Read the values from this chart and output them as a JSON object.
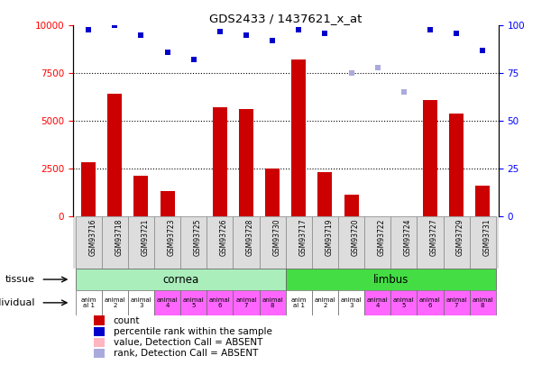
{
  "title": "GDS2433 / 1437621_x_at",
  "samples": [
    "GSM93716",
    "GSM93718",
    "GSM93721",
    "GSM93723",
    "GSM93725",
    "GSM93726",
    "GSM93728",
    "GSM93730",
    "GSM93717",
    "GSM93719",
    "GSM93720",
    "GSM93722",
    "GSM93724",
    "GSM93727",
    "GSM93729",
    "GSM93731"
  ],
  "count_values": [
    2800,
    6400,
    2100,
    1300,
    0,
    5700,
    5600,
    2500,
    8200,
    2300,
    1100,
    0,
    0,
    6100,
    5400,
    1600
  ],
  "count_absent": [
    false,
    false,
    false,
    false,
    true,
    false,
    false,
    false,
    false,
    false,
    false,
    true,
    true,
    false,
    false,
    false
  ],
  "rank_values": [
    98,
    100,
    95,
    86,
    82,
    97,
    95,
    92,
    98,
    96,
    75,
    78,
    65,
    98,
    96,
    87
  ],
  "rank_absent": [
    false,
    false,
    false,
    false,
    false,
    false,
    false,
    false,
    false,
    false,
    true,
    true,
    true,
    false,
    false,
    false
  ],
  "tissue_groups": [
    {
      "label": "cornea",
      "start": 0,
      "end": 8,
      "color": "#AAEEBB"
    },
    {
      "label": "limbus",
      "start": 8,
      "end": 16,
      "color": "#44DD44"
    }
  ],
  "individual_labels": [
    "anim\nal 1",
    "animal\n2",
    "animal\n3",
    "animal\n4",
    "animal\n5",
    "animal\n6",
    "animal\n7",
    "animal\n8",
    "anim\nal 1",
    "animal\n2",
    "animal\n3",
    "animal\n4",
    "animal\n5",
    "animal\n6",
    "animal\n7",
    "animal\n8"
  ],
  "individual_colors_white": [
    0,
    1,
    2,
    8,
    9,
    10
  ],
  "individual_colors_pink": [
    3,
    4,
    5,
    6,
    7,
    11,
    12,
    13,
    14,
    15
  ],
  "white_color": "#FFFFFF",
  "pink_color": "#FF66FF",
  "ylim_left": [
    0,
    10000
  ],
  "ylim_right": [
    0,
    100
  ],
  "yticks_left": [
    0,
    2500,
    5000,
    7500,
    10000
  ],
  "yticks_right": [
    0,
    25,
    50,
    75,
    100
  ],
  "bar_color_present": "#CC0000",
  "bar_color_absent": "#FFB6C1",
  "rank_color_present": "#0000CC",
  "rank_color_absent": "#AAAADD",
  "dotted_lines": [
    2500,
    5000,
    7500
  ],
  "legend_items": [
    {
      "label": "count",
      "color": "#CC0000"
    },
    {
      "label": "percentile rank within the sample",
      "color": "#0000CC"
    },
    {
      "label": "value, Detection Call = ABSENT",
      "color": "#FFB6C1"
    },
    {
      "label": "rank, Detection Call = ABSENT",
      "color": "#AAAADD"
    }
  ],
  "bg_color": "#FFFFFF",
  "xticklabel_bg": "#DDDDDD"
}
